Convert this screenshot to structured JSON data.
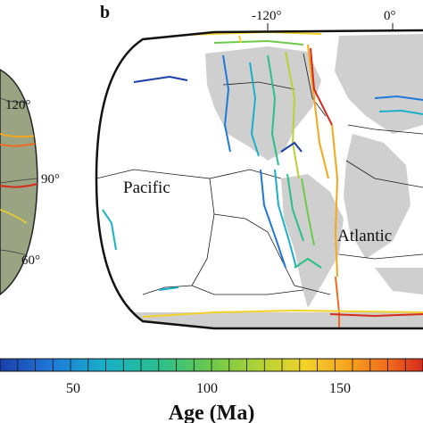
{
  "panel_a": {
    "lat_labels": [
      "120°",
      "90°",
      "60°"
    ]
  },
  "panel_b": {
    "letter": "b",
    "lon_labels": [
      "-120°",
      "0°"
    ],
    "ocean_labels": [
      "Pacific",
      "Atlantic"
    ]
  },
  "colorbar": {
    "title": "Age (Ma)",
    "ticks": [
      "50",
      "100",
      "150"
    ],
    "colors": [
      "#1a3ea8",
      "#1f78d8",
      "#18b0c8",
      "#2bbf8a",
      "#6cc94a",
      "#b5d334",
      "#f2d22a",
      "#f6a51f",
      "#ef6a1c",
      "#d62a1b"
    ]
  }
}
